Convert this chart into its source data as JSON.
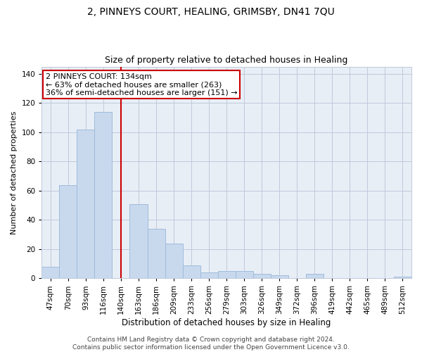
{
  "title": "2, PINNEYS COURT, HEALING, GRIMSBY, DN41 7QU",
  "subtitle": "Size of property relative to detached houses in Healing",
  "xlabel": "Distribution of detached houses by size in Healing",
  "ylabel": "Number of detached properties",
  "categories": [
    "47sqm",
    "70sqm",
    "93sqm",
    "116sqm",
    "140sqm",
    "163sqm",
    "186sqm",
    "209sqm",
    "233sqm",
    "256sqm",
    "279sqm",
    "303sqm",
    "326sqm",
    "349sqm",
    "372sqm",
    "396sqm",
    "419sqm",
    "442sqm",
    "465sqm",
    "489sqm",
    "512sqm"
  ],
  "values": [
    8,
    64,
    102,
    114,
    0,
    51,
    34,
    24,
    9,
    4,
    5,
    5,
    3,
    2,
    0,
    3,
    0,
    0,
    0,
    0,
    1
  ],
  "bar_color": "#c8d9ee",
  "bar_edge_color": "#a0bbda",
  "vline_x": 4.0,
  "vline_color": "#cc0000",
  "annotation_text": "2 PINNEYS COURT: 134sqm\n← 63% of detached houses are smaller (263)\n36% of semi-detached houses are larger (151) →",
  "annotation_box_color": "#ffffff",
  "annotation_box_edge_color": "#cc0000",
  "ylim": [
    0,
    145
  ],
  "yticks": [
    0,
    20,
    40,
    60,
    80,
    100,
    120,
    140
  ],
  "grid_color": "#bfc9db",
  "bg_color": "#e8eef6",
  "footer": "Contains HM Land Registry data © Crown copyright and database right 2024.\nContains public sector information licensed under the Open Government Licence v3.0.",
  "title_fontsize": 10,
  "subtitle_fontsize": 9,
  "xlabel_fontsize": 8.5,
  "ylabel_fontsize": 8,
  "tick_fontsize": 7.5,
  "annotation_fontsize": 8,
  "footer_fontsize": 6.5
}
